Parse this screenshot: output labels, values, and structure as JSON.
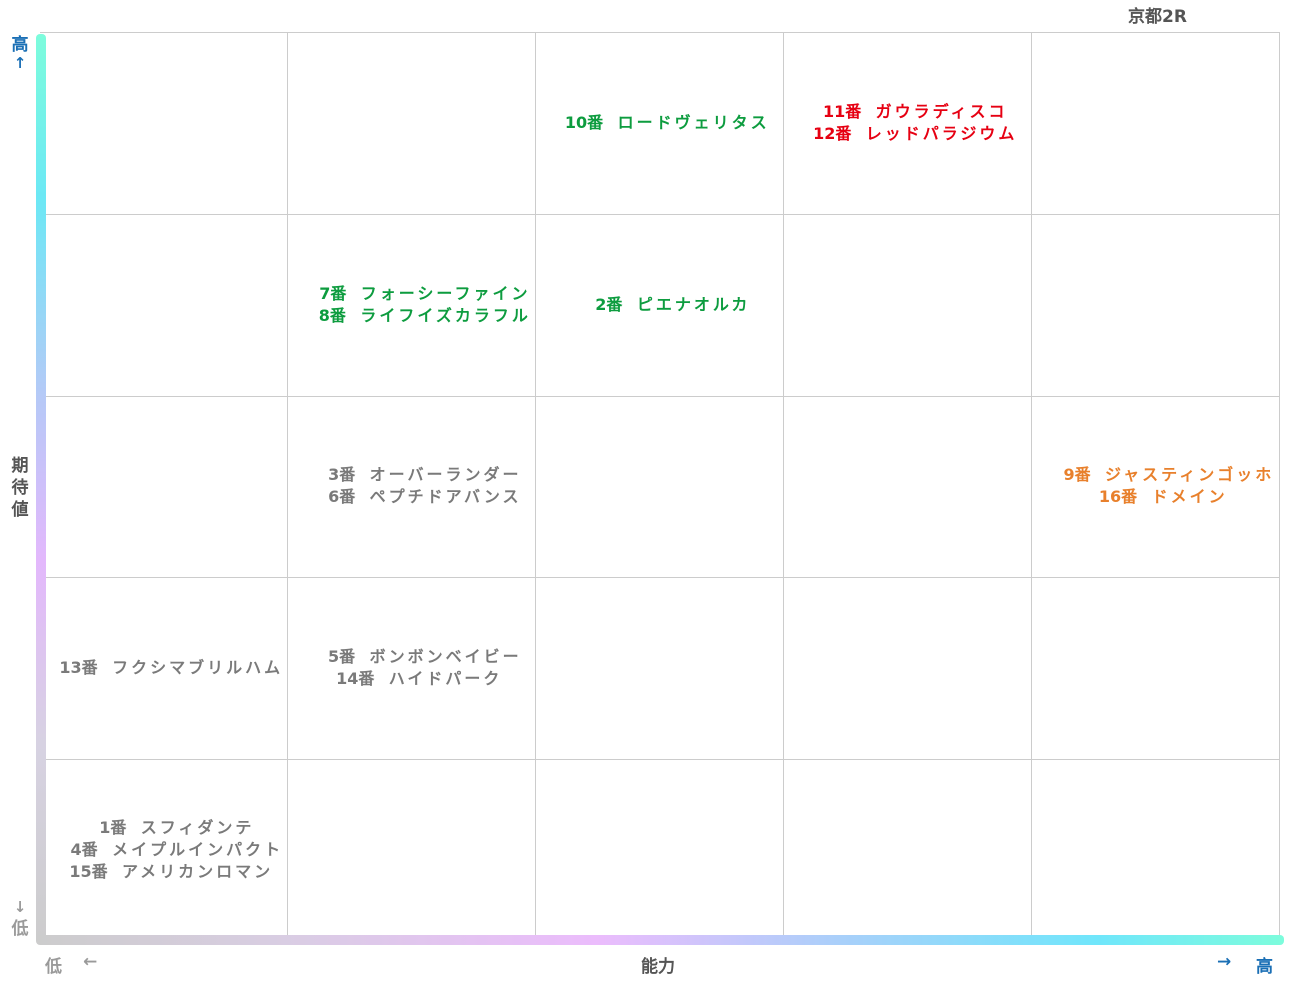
{
  "title": "京都2R",
  "y_axis": {
    "high": "高",
    "high_arrow": "↑",
    "label": [
      "期",
      "待",
      "値"
    ],
    "low_arrow": "↓",
    "low": "低"
  },
  "x_axis": {
    "low": "低",
    "low_arrow": "←",
    "label": "能力",
    "high_arrow": "→",
    "high": "高"
  },
  "colors": {
    "green": "#0d9c3f",
    "red": "#e60012",
    "orange": "#e8802c",
    "gray": "#7a7a7a",
    "grid": "#cccccc"
  },
  "chart_data": {
    "type": "table",
    "title": "京都2R",
    "xlabel": "能力",
    "ylabel": "期待値",
    "columns": 5,
    "rows": 5,
    "grid": true,
    "cells": [
      {
        "row": 0,
        "col": 2,
        "color": "green",
        "entries": [
          {
            "num": "10番",
            "name": "ロードヴェリタス"
          }
        ]
      },
      {
        "row": 0,
        "col": 3,
        "color": "red",
        "entries": [
          {
            "num": "11番",
            "name": "ガウラディスコ"
          },
          {
            "num": "12番",
            "name": "レッドパラジウム"
          }
        ]
      },
      {
        "row": 1,
        "col": 1,
        "color": "green",
        "entries": [
          {
            "num": "7番",
            "name": "フォーシーファイン"
          },
          {
            "num": "8番",
            "name": "ライフイズカラフル"
          }
        ]
      },
      {
        "row": 1,
        "col": 2,
        "color": "green",
        "entries": [
          {
            "num": "2番",
            "name": "ピエナオルカ"
          }
        ]
      },
      {
        "row": 2,
        "col": 1,
        "color": "gray",
        "entries": [
          {
            "num": "3番",
            "name": "オーバーランダー"
          },
          {
            "num": "6番",
            "name": "ペプチドアバンス"
          }
        ]
      },
      {
        "row": 2,
        "col": 4,
        "color": "orange",
        "entries": [
          {
            "num": "9番",
            "name": "ジャスティンゴッホ"
          },
          {
            "num": "16番",
            "name": "ドメイン"
          }
        ]
      },
      {
        "row": 3,
        "col": 0,
        "color": "gray",
        "entries": [
          {
            "num": "13番",
            "name": "フクシマブリルハム"
          }
        ]
      },
      {
        "row": 3,
        "col": 1,
        "color": "gray",
        "entries": [
          {
            "num": "5番",
            "name": "ボンボンベイビー"
          },
          {
            "num": "14番",
            "name": "ハイドパーク"
          }
        ]
      },
      {
        "row": 4,
        "col": 0,
        "color": "gray",
        "entries": [
          {
            "num": "1番",
            "name": "スフィダンテ"
          },
          {
            "num": "4番",
            "name": "メイプルインパクト"
          },
          {
            "num": "15番",
            "name": "アメリカンロマン"
          }
        ]
      }
    ]
  }
}
